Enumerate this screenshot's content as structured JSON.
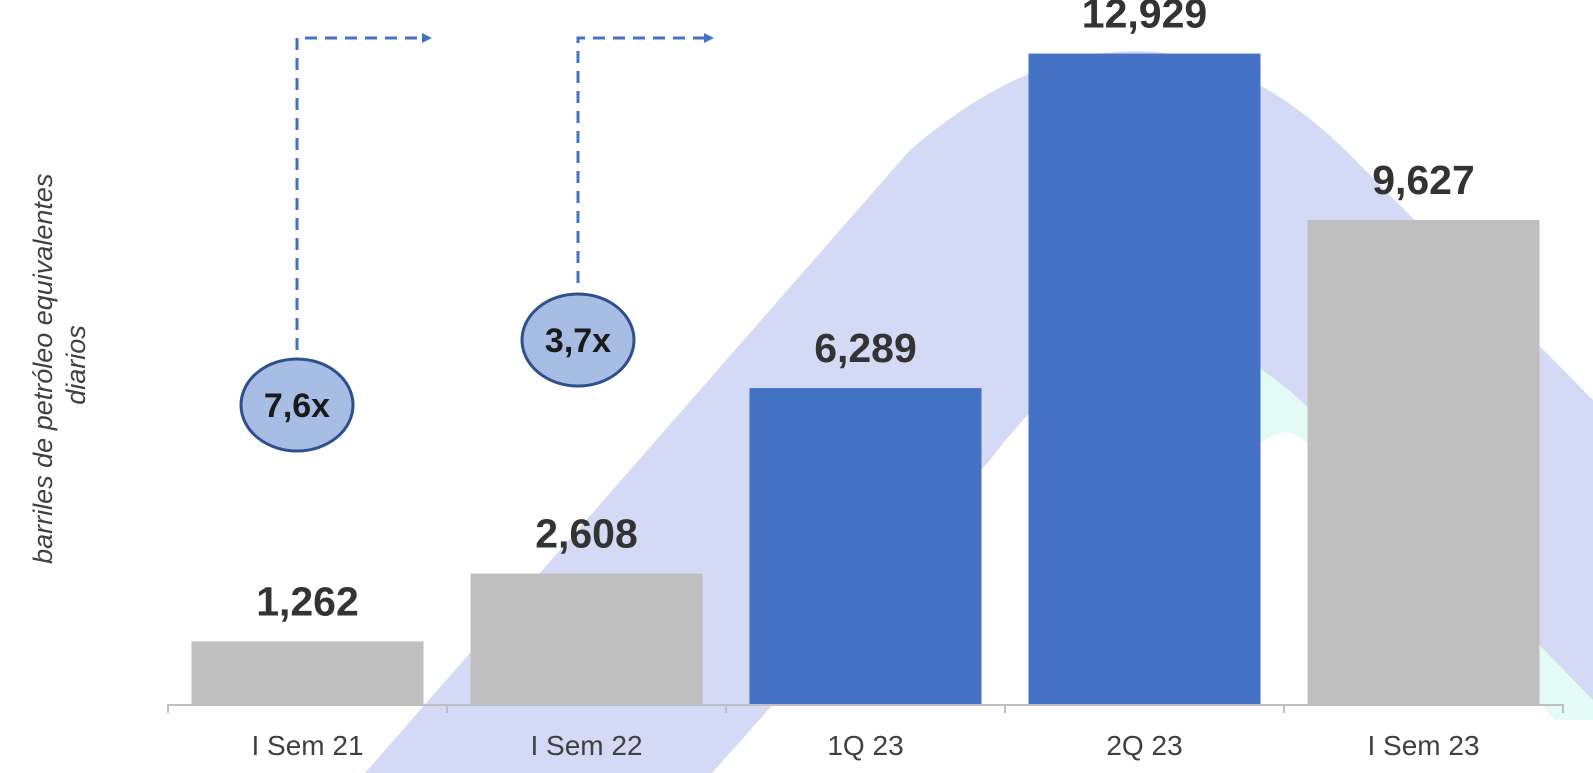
{
  "chart_data": {
    "type": "bar",
    "ylabel_lines": [
      "barriles de petróleo equivalentes",
      "diarios"
    ],
    "categories": [
      "I Sem 21",
      "I Sem 22",
      "1Q 23",
      "2Q 23",
      "I Sem 23"
    ],
    "values": [
      1262,
      2608,
      6289,
      12929,
      9627
    ],
    "value_labels": [
      "1,262",
      "2,608",
      "6,289",
      "12,929",
      "9,627"
    ],
    "bar_colors": [
      "#bfbfbf",
      "#bfbfbf",
      "#4472c4",
      "#4472c4",
      "#bfbfbf"
    ],
    "ylim": [
      0,
      13000
    ],
    "grid": false,
    "annotations": [
      {
        "label": "7,6x",
        "category": "I Sem 21"
      },
      {
        "label": "3,7x",
        "category": "I Sem 22"
      }
    ],
    "colors": {
      "axis": "#bfbfbf",
      "arrow": "#4472c4",
      "bubble_fill": "#a7bde3",
      "bubble_stroke": "#2f4f8f",
      "background_band": "#d4d9f5",
      "background_band_2": "#e3fbf4"
    }
  }
}
